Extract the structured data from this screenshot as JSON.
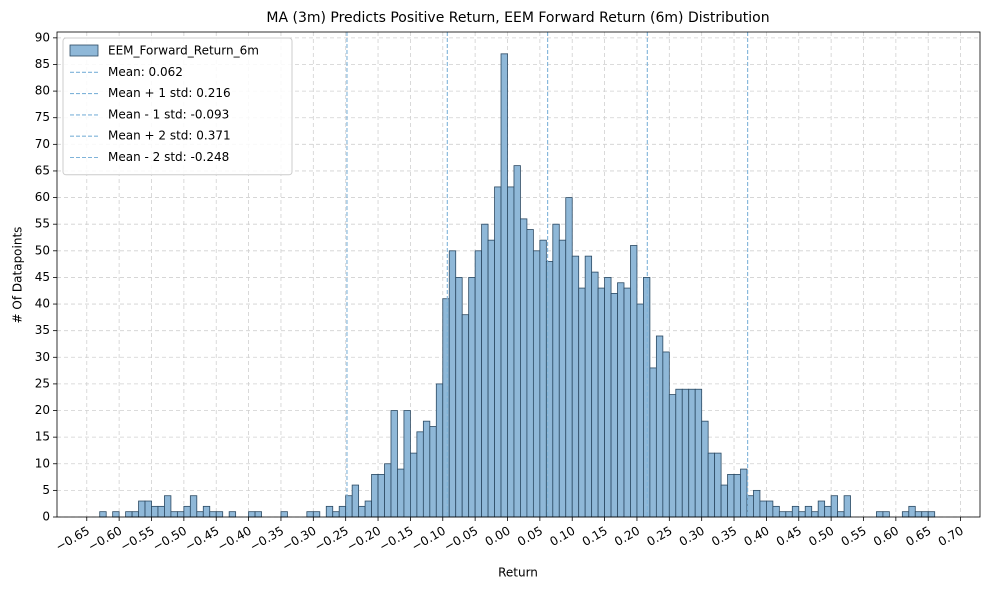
{
  "chart_data": {
    "type": "histogram",
    "title": "MA (3m) Predicts Positive Return, EEM Forward Return (6m) Distribution",
    "xlabel": "Return",
    "ylabel": "# Of Datapoints",
    "bins": [
      -0.63,
      -0.62,
      -0.61,
      -0.6,
      -0.59,
      -0.58,
      -0.57,
      -0.56,
      -0.55,
      -0.54,
      -0.53,
      -0.52,
      -0.51,
      -0.5,
      -0.49,
      -0.48,
      -0.47,
      -0.46,
      -0.45,
      -0.44,
      -0.43,
      -0.42,
      -0.41,
      -0.4,
      -0.39,
      -0.38,
      -0.37,
      -0.36,
      -0.35,
      -0.34,
      -0.33,
      -0.32,
      -0.31,
      -0.3,
      -0.29,
      -0.28,
      -0.27,
      -0.26,
      -0.25,
      -0.24,
      -0.23,
      -0.22,
      -0.21,
      -0.2,
      -0.19,
      -0.18,
      -0.17,
      -0.16,
      -0.15,
      -0.14,
      -0.13,
      -0.12,
      -0.11,
      -0.1,
      -0.09,
      -0.08,
      -0.07,
      -0.06,
      -0.05,
      -0.04,
      -0.03,
      -0.02,
      -0.01,
      0,
      0.01,
      0.02,
      0.03,
      0.04,
      0.05,
      0.06,
      0.07,
      0.08,
      0.09,
      0.1,
      0.11,
      0.12,
      0.13,
      0.14,
      0.15,
      0.16,
      0.17,
      0.18,
      0.19,
      0.2,
      0.21,
      0.22,
      0.23,
      0.24,
      0.25,
      0.26,
      0.27,
      0.28,
      0.29,
      0.3,
      0.31,
      0.32,
      0.33,
      0.34,
      0.35,
      0.36,
      0.37,
      0.38,
      0.39,
      0.4,
      0.41,
      0.42,
      0.43,
      0.44,
      0.45,
      0.46,
      0.47,
      0.48,
      0.49,
      0.5,
      0.51,
      0.52,
      0.53,
      0.54,
      0.55,
      0.56,
      0.57,
      0.58,
      0.59,
      0.6,
      0.61,
      0.62,
      0.63,
      0.64,
      0.65,
      0.66
    ],
    "series": [
      {
        "name": "EEM_Forward_Return_6m",
        "color": "#8fb8d8",
        "edgecolor": "#2c4a63",
        "values": [
          1,
          0,
          1,
          0,
          1,
          1,
          3,
          3,
          2,
          2,
          4,
          1,
          1,
          2,
          4,
          1,
          2,
          1,
          1,
          0,
          1,
          0,
          0,
          1,
          1,
          0,
          0,
          0,
          1,
          0,
          0,
          0,
          1,
          1,
          0,
          2,
          1,
          2,
          4,
          6,
          2,
          3,
          8,
          8,
          10,
          20,
          9,
          20,
          12,
          16,
          18,
          17,
          25,
          41,
          50,
          45,
          38,
          45,
          50,
          55,
          52,
          62,
          87,
          62,
          66,
          56,
          54,
          50,
          52,
          48,
          55,
          52,
          60,
          49,
          43,
          49,
          46,
          43,
          45,
          42,
          44,
          43,
          51,
          40,
          45,
          28,
          34,
          31,
          23,
          24,
          24,
          24,
          24,
          18,
          12,
          12,
          6,
          8,
          8,
          9,
          4,
          5,
          3,
          3,
          2,
          1,
          1,
          2,
          1,
          2,
          1,
          3,
          2,
          4,
          1,
          4,
          0,
          0,
          0,
          0,
          1,
          1,
          0,
          0,
          1,
          2,
          1,
          1,
          1
        ]
      }
    ],
    "vlines": [
      {
        "name": "Mean: 0.062",
        "value": 0.062
      },
      {
        "name": "Mean + 1 std: 0.216",
        "value": 0.216
      },
      {
        "name": "Mean - 1 std: -0.093",
        "value": -0.093
      },
      {
        "name": "Mean + 2 std: 0.371",
        "value": 0.371
      },
      {
        "name": "Mean - 2 std: -0.248",
        "value": -0.248
      }
    ],
    "vline_color": "#7fb3d9",
    "xlim": [
      -0.696,
      0.73
    ],
    "ylim": [
      0,
      91.1
    ],
    "xticks": [
      {
        "value": -0.65,
        "label": "−0.65"
      },
      {
        "value": -0.6,
        "label": "−0.60"
      },
      {
        "value": -0.55,
        "label": "−0.55"
      },
      {
        "value": -0.5,
        "label": "−0.50"
      },
      {
        "value": -0.45,
        "label": "−0.45"
      },
      {
        "value": -0.4,
        "label": "−0.40"
      },
      {
        "value": -0.35,
        "label": "−0.35"
      },
      {
        "value": -0.3,
        "label": "−0.30"
      },
      {
        "value": -0.25,
        "label": "−0.25"
      },
      {
        "value": -0.2,
        "label": "−0.20"
      },
      {
        "value": -0.15,
        "label": "−0.15"
      },
      {
        "value": -0.1,
        "label": "−0.10"
      },
      {
        "value": -0.05,
        "label": "−0.05"
      },
      {
        "value": 0,
        "label": "0.00"
      },
      {
        "value": 0.05,
        "label": "0.05"
      },
      {
        "value": 0.1,
        "label": "0.10"
      },
      {
        "value": 0.15,
        "label": "0.15"
      },
      {
        "value": 0.2,
        "label": "0.20"
      },
      {
        "value": 0.25,
        "label": "0.25"
      },
      {
        "value": 0.3,
        "label": "0.30"
      },
      {
        "value": 0.35,
        "label": "0.35"
      },
      {
        "value": 0.4,
        "label": "0.40"
      },
      {
        "value": 0.45,
        "label": "0.45"
      },
      {
        "value": 0.5,
        "label": "0.50"
      },
      {
        "value": 0.55,
        "label": "0.55"
      },
      {
        "value": 0.6,
        "label": "0.60"
      },
      {
        "value": 0.65,
        "label": "0.65"
      },
      {
        "value": 0.7,
        "label": "0.70"
      }
    ],
    "yticks": [
      0,
      5,
      10,
      15,
      20,
      25,
      30,
      35,
      40,
      45,
      50,
      55,
      60,
      65,
      70,
      75,
      80,
      85,
      90
    ],
    "grid": true,
    "legend": "upper left"
  }
}
